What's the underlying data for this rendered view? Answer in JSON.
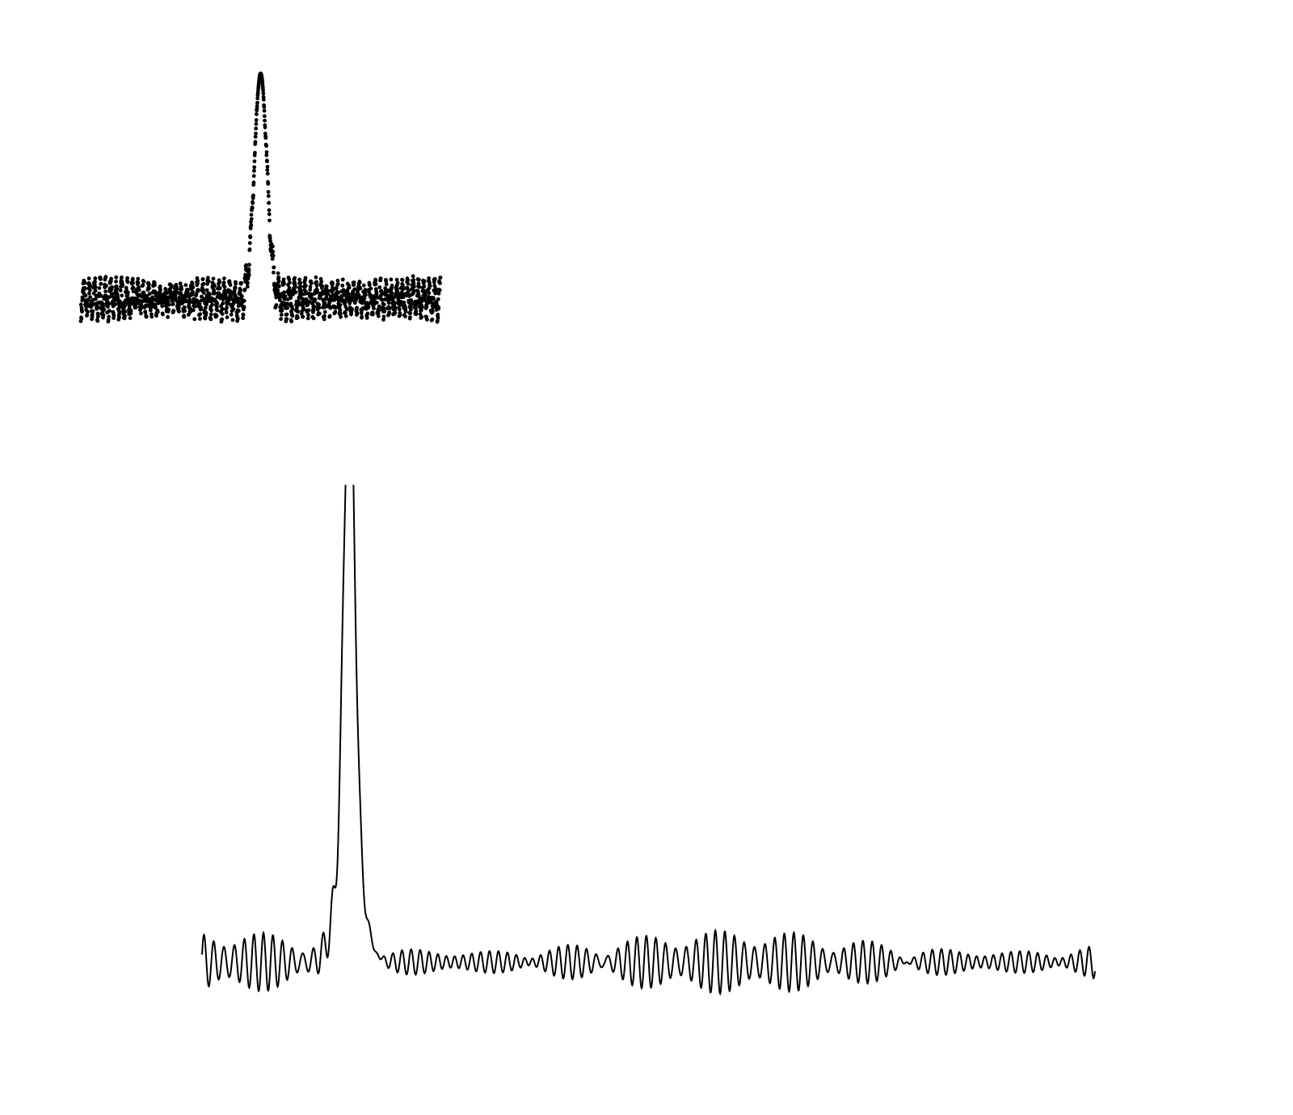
{
  "colors": {
    "ink": "#000000",
    "background": "#ffffff"
  },
  "chart_data": [
    {
      "type": "scatter",
      "title": "",
      "xlabel": "",
      "ylabel": "",
      "axes_visible": false,
      "grid": false,
      "xlim": [
        -1,
        1
      ],
      "ylim": [
        -0.1,
        1.0
      ],
      "peak": {
        "x": 0.0,
        "y": 0.95,
        "width": 0.035
      },
      "baseline": {
        "level": 0.0,
        "ripple": 0.06,
        "period": 0.03,
        "spread": 0.05,
        "edge_rise": 0.0
      }
    },
    {
      "type": "line",
      "title": "",
      "xlabel": "",
      "ylabel": "",
      "axes_visible": false,
      "grid": false,
      "xlim": [
        0,
        1000
      ],
      "ylim": [
        -0.05,
        1.0
      ],
      "peak": {
        "x": 165,
        "y": 1.0,
        "width": 12
      },
      "baseline": {
        "level": 0.0,
        "ripple": 0.05,
        "period": 11
      }
    }
  ]
}
